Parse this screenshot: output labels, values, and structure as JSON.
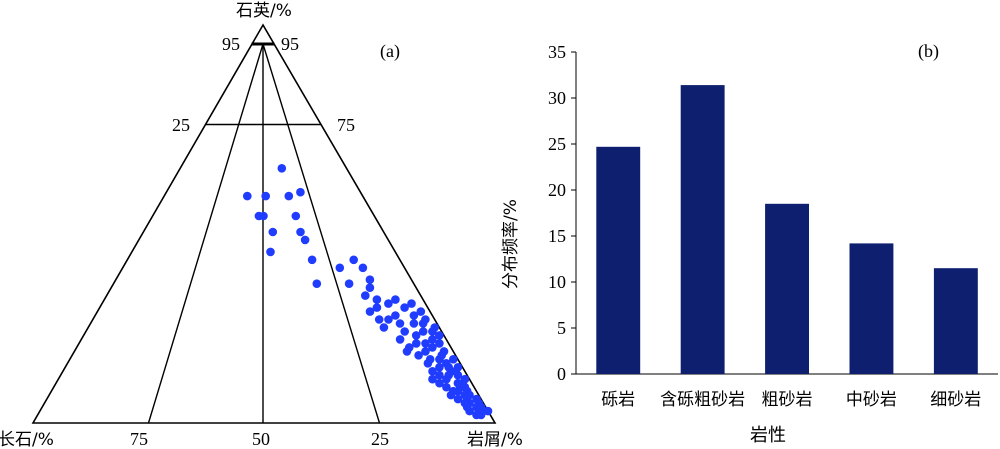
{
  "chart_data": [
    {
      "type": "scatter",
      "subtype": "ternary",
      "panel_label": "(a)",
      "apex_labels": {
        "top": "石英/%",
        "left": "长石/%",
        "right": "岩屑/%"
      },
      "edge_ticks": {
        "left_side_top": "95",
        "right_side_top": "95",
        "left_side_mid": "25",
        "right_side_mid": "75",
        "base": [
          "75",
          "50",
          "25"
        ]
      },
      "boundaries": {
        "quartz_lines": [
          95,
          75
        ],
        "feldspar_rock_ratio_lines": [
          25,
          50,
          75
        ]
      },
      "color": "#1f3cff",
      "points": [
        {
          "q": 57,
          "f": 25,
          "r": 18
        },
        {
          "q": 64,
          "f": 14,
          "r": 22
        },
        {
          "q": 58,
          "f": 13,
          "r": 29
        },
        {
          "q": 57,
          "f": 21,
          "r": 22
        },
        {
          "q": 52,
          "f": 25,
          "r": 23
        },
        {
          "q": 52,
          "f": 24,
          "r": 24
        },
        {
          "q": 48,
          "f": 24,
          "r": 28
        },
        {
          "q": 43,
          "f": 27,
          "r": 30
        },
        {
          "q": 57,
          "f": 16,
          "r": 27
        },
        {
          "q": 52,
          "f": 17,
          "r": 31
        },
        {
          "q": 48,
          "f": 18,
          "r": 34
        },
        {
          "q": 46,
          "f": 18,
          "r": 36
        },
        {
          "q": 41,
          "f": 19,
          "r": 40
        },
        {
          "q": 35,
          "f": 21,
          "r": 44
        },
        {
          "q": 39,
          "f": 14,
          "r": 47
        },
        {
          "q": 35,
          "f": 14,
          "r": 51
        },
        {
          "q": 41,
          "f": 10,
          "r": 49
        },
        {
          "q": 39,
          "f": 9,
          "r": 52
        },
        {
          "q": 36,
          "f": 9,
          "r": 55
        },
        {
          "q": 34,
          "f": 10,
          "r": 56
        },
        {
          "q": 32,
          "f": 12,
          "r": 56
        },
        {
          "q": 31,
          "f": 10,
          "r": 59
        },
        {
          "q": 30,
          "f": 8,
          "r": 62
        },
        {
          "q": 29,
          "f": 11,
          "r": 60
        },
        {
          "q": 28,
          "f": 13,
          "r": 59
        },
        {
          "q": 26,
          "f": 12,
          "r": 62
        },
        {
          "q": 24,
          "f": 12,
          "r": 64
        },
        {
          "q": 26,
          "f": 10,
          "r": 64
        },
        {
          "q": 27,
          "f": 8,
          "r": 65
        },
        {
          "q": 25,
          "f": 8,
          "r": 67
        },
        {
          "q": 31,
          "f": 6,
          "r": 63
        },
        {
          "q": 29,
          "f": 5,
          "r": 66
        },
        {
          "q": 30,
          "f": 3,
          "r": 67
        },
        {
          "q": 28,
          "f": 2,
          "r": 70
        },
        {
          "q": 27,
          "f": 4,
          "r": 69
        },
        {
          "q": 25,
          "f": 5,
          "r": 70
        },
        {
          "q": 23,
          "f": 8,
          "r": 69
        },
        {
          "q": 21,
          "f": 10,
          "r": 69
        },
        {
          "q": 22,
          "f": 6,
          "r": 72
        },
        {
          "q": 20,
          "f": 7,
          "r": 73
        },
        {
          "q": 19,
          "f": 9,
          "r": 72
        },
        {
          "q": 18,
          "f": 6,
          "r": 76
        },
        {
          "q": 20,
          "f": 5,
          "r": 75
        },
        {
          "q": 23,
          "f": 4,
          "r": 73
        },
        {
          "q": 21,
          "f": 3,
          "r": 76
        },
        {
          "q": 25,
          "f": 3,
          "r": 72
        },
        {
          "q": 23,
          "f": 2,
          "r": 75
        },
        {
          "q": 20,
          "f": 2,
          "r": 78
        },
        {
          "q": 17,
          "f": 8,
          "r": 75
        },
        {
          "q": 16,
          "f": 6,
          "r": 78
        },
        {
          "q": 15,
          "f": 7,
          "r": 78
        },
        {
          "q": 14,
          "f": 5,
          "r": 81
        },
        {
          "q": 13,
          "f": 7,
          "r": 80
        },
        {
          "q": 12,
          "f": 6,
          "r": 82
        },
        {
          "q": 11,
          "f": 5,
          "r": 84
        },
        {
          "q": 16,
          "f": 4,
          "r": 80
        },
        {
          "q": 15,
          "f": 3,
          "r": 82
        },
        {
          "q": 13,
          "f": 3,
          "r": 84
        },
        {
          "q": 12,
          "f": 4,
          "r": 84
        },
        {
          "q": 12,
          "f": 2,
          "r": 86
        },
        {
          "q": 10,
          "f": 3,
          "r": 87
        },
        {
          "q": 10,
          "f": 2,
          "r": 88
        },
        {
          "q": 9,
          "f": 3,
          "r": 88
        },
        {
          "q": 9,
          "f": 2,
          "r": 89
        },
        {
          "q": 8,
          "f": 4,
          "r": 88
        },
        {
          "q": 8,
          "f": 2,
          "r": 90
        },
        {
          "q": 7,
          "f": 3,
          "r": 90
        },
        {
          "q": 7,
          "f": 2,
          "r": 91
        },
        {
          "q": 6,
          "f": 3,
          "r": 91
        },
        {
          "q": 6,
          "f": 1,
          "r": 93
        },
        {
          "q": 5,
          "f": 3,
          "r": 92
        },
        {
          "q": 5,
          "f": 1,
          "r": 94
        },
        {
          "q": 4,
          "f": 2,
          "r": 94
        },
        {
          "q": 3,
          "f": 2,
          "r": 95
        },
        {
          "q": 3,
          "f": 1,
          "r": 96
        },
        {
          "q": 2,
          "f": 2,
          "r": 96
        },
        {
          "q": 8,
          "f": 5,
          "r": 87
        },
        {
          "q": 9,
          "f": 6,
          "r": 85
        },
        {
          "q": 10,
          "f": 7,
          "r": 83
        },
        {
          "q": 11,
          "f": 8,
          "r": 81
        },
        {
          "q": 7,
          "f": 6,
          "r": 87
        },
        {
          "q": 6,
          "f": 5,
          "r": 89
        },
        {
          "q": 5,
          "f": 4,
          "r": 91
        },
        {
          "q": 4,
          "f": 4,
          "r": 92
        },
        {
          "q": 3,
          "f": 4,
          "r": 93
        },
        {
          "q": 2,
          "f": 3,
          "r": 95
        },
        {
          "q": 4,
          "f": 1,
          "r": 95
        },
        {
          "q": 3,
          "f": 0,
          "r": 97
        },
        {
          "q": 18,
          "f": 2,
          "r": 80
        },
        {
          "q": 17,
          "f": 3,
          "r": 80
        },
        {
          "q": 16,
          "f": 1,
          "r": 83
        },
        {
          "q": 14,
          "f": 1,
          "r": 85
        },
        {
          "q": 13,
          "f": 2,
          "r": 85
        },
        {
          "q": 11,
          "f": 1,
          "r": 88
        },
        {
          "q": 14,
          "f": 3,
          "r": 83
        },
        {
          "q": 19,
          "f": 4,
          "r": 77
        },
        {
          "q": 22,
          "f": 1,
          "r": 77
        },
        {
          "q": 24,
          "f": 1,
          "r": 75
        },
        {
          "q": 26,
          "f": 2,
          "r": 72
        },
        {
          "q": 18,
          "f": 10,
          "r": 72
        }
      ]
    },
    {
      "type": "bar",
      "panel_label": "(b)",
      "categories": [
        "砾岩",
        "含砾粗砂岩",
        "粗砂岩",
        "中砂岩",
        "细砂岩"
      ],
      "values": [
        24.7,
        31.4,
        18.5,
        14.2,
        11.5
      ],
      "ylabel": "分布频率/%",
      "xlabel": "岩性",
      "ylim": [
        0,
        35
      ],
      "yticks": [
        0,
        5,
        10,
        15,
        20,
        25,
        30,
        35
      ],
      "color": "#0d1f6e",
      "grid": false
    }
  ]
}
